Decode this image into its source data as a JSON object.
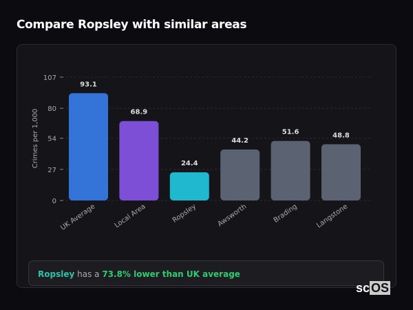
{
  "title": "Compare Ropsley with similar areas",
  "chart_data": {
    "type": "bar",
    "categories": [
      "UK Average",
      "Local Area",
      "Ropsley",
      "Awsworth",
      "Brading",
      "Langstone"
    ],
    "values": [
      93.1,
      68.9,
      24.4,
      44.2,
      51.6,
      48.8
    ],
    "colors": [
      "#3474d8",
      "#7c4fd6",
      "#1fb8cf",
      "#5b6272",
      "#5b6272",
      "#5b6272"
    ],
    "ylabel": "Crimes per 1,000",
    "yticks": [
      0,
      27,
      54,
      80,
      107
    ],
    "ylim": [
      0,
      107
    ],
    "grid": true
  },
  "footer": {
    "area": "Ropsley",
    "middle": " has a ",
    "highlight": "73.8% lower than UK average"
  },
  "logo": {
    "a": "sc",
    "b": "OS"
  }
}
